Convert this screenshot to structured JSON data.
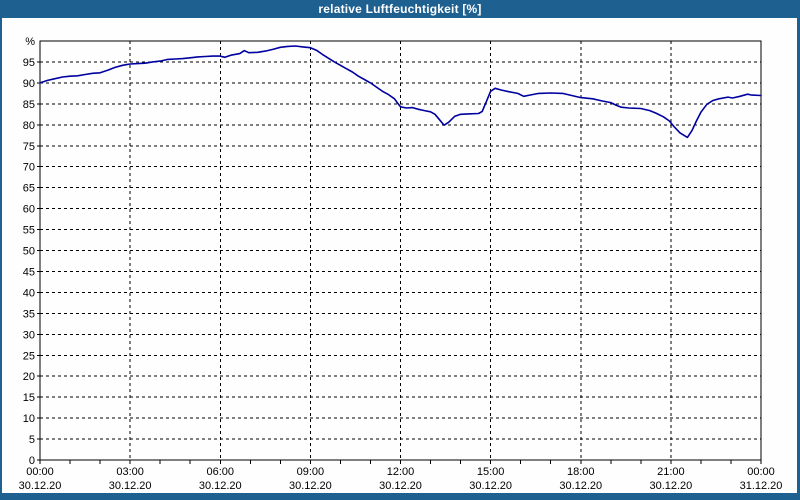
{
  "window": {
    "title": "relative Luftfeuchtigkeit [%]",
    "titlebar_color": "#1E6090",
    "frame_color": "#1E6090",
    "background_color": "#FDFEFD"
  },
  "chart_data": {
    "type": "line",
    "title": "relative Luftfeuchtigkeit [%]",
    "ylabel": "%",
    "y_unit_label": "%",
    "ylim": [
      0,
      100
    ],
    "y_tick_step": 5,
    "y_tick_values": [
      0,
      5,
      10,
      15,
      20,
      25,
      30,
      35,
      40,
      45,
      50,
      55,
      60,
      65,
      70,
      75,
      80,
      85,
      90,
      95
    ],
    "x_range_hours": [
      0,
      24
    ],
    "x_minor_tick_hours": 1,
    "x_major_ticks": [
      {
        "hour": 0,
        "time": "00:00",
        "date": "30.12.20"
      },
      {
        "hour": 3,
        "time": "03:00",
        "date": "30.12.20"
      },
      {
        "hour": 6,
        "time": "06:00",
        "date": "30.12.20"
      },
      {
        "hour": 9,
        "time": "09:00",
        "date": "30.12.20"
      },
      {
        "hour": 12,
        "time": "12:00",
        "date": "30.12.20"
      },
      {
        "hour": 15,
        "time": "15:00",
        "date": "30.12.20"
      },
      {
        "hour": 18,
        "time": "18:00",
        "date": "30.12.20"
      },
      {
        "hour": 21,
        "time": "21:00",
        "date": "30.12.20"
      },
      {
        "hour": 24,
        "time": "00:00",
        "date": "31.12.20"
      }
    ],
    "grid": "dashed",
    "legend": "none",
    "line_color": "#0000A0",
    "series": [
      {
        "name": "relative Luftfeuchtigkeit",
        "points": [
          [
            0.0,
            90.0
          ],
          [
            0.25,
            90.6
          ],
          [
            0.5,
            91.0
          ],
          [
            0.75,
            91.4
          ],
          [
            1.0,
            91.6
          ],
          [
            1.25,
            91.7
          ],
          [
            1.5,
            92.0
          ],
          [
            1.75,
            92.3
          ],
          [
            2.0,
            92.4
          ],
          [
            2.25,
            93.0
          ],
          [
            2.5,
            93.7
          ],
          [
            2.75,
            94.2
          ],
          [
            3.0,
            94.5
          ],
          [
            3.25,
            94.6
          ],
          [
            3.5,
            94.7
          ],
          [
            3.75,
            95.0
          ],
          [
            4.0,
            95.2
          ],
          [
            4.25,
            95.6
          ],
          [
            4.5,
            95.7
          ],
          [
            4.75,
            95.8
          ],
          [
            5.0,
            96.0
          ],
          [
            5.25,
            96.2
          ],
          [
            5.5,
            96.3
          ],
          [
            5.75,
            96.4
          ],
          [
            6.0,
            96.4
          ],
          [
            6.15,
            96.1
          ],
          [
            6.35,
            96.6
          ],
          [
            6.65,
            97.0
          ],
          [
            6.8,
            97.7
          ],
          [
            6.95,
            97.2
          ],
          [
            7.25,
            97.3
          ],
          [
            7.5,
            97.6
          ],
          [
            7.75,
            98.0
          ],
          [
            8.0,
            98.5
          ],
          [
            8.25,
            98.7
          ],
          [
            8.5,
            98.8
          ],
          [
            8.75,
            98.6
          ],
          [
            9.0,
            98.4
          ],
          [
            9.2,
            97.8
          ],
          [
            9.4,
            96.8
          ],
          [
            9.6,
            95.9
          ],
          [
            9.8,
            95.0
          ],
          [
            10.0,
            94.2
          ],
          [
            10.2,
            93.4
          ],
          [
            10.4,
            92.6
          ],
          [
            10.6,
            91.6
          ],
          [
            10.8,
            90.8
          ],
          [
            11.0,
            90.0
          ],
          [
            11.2,
            89.0
          ],
          [
            11.4,
            88.0
          ],
          [
            11.6,
            87.2
          ],
          [
            11.8,
            86.2
          ],
          [
            11.9,
            85.2
          ],
          [
            12.0,
            84.3
          ],
          [
            12.2,
            84.0
          ],
          [
            12.4,
            84.1
          ],
          [
            12.6,
            83.7
          ],
          [
            12.8,
            83.4
          ],
          [
            13.0,
            83.1
          ],
          [
            13.15,
            82.5
          ],
          [
            13.3,
            81.2
          ],
          [
            13.45,
            79.9
          ],
          [
            13.6,
            80.6
          ],
          [
            13.8,
            82.0
          ],
          [
            14.0,
            82.5
          ],
          [
            14.25,
            82.6
          ],
          [
            14.6,
            82.7
          ],
          [
            14.72,
            83.2
          ],
          [
            14.85,
            85.4
          ],
          [
            15.0,
            88.0
          ],
          [
            15.15,
            88.7
          ],
          [
            15.35,
            88.3
          ],
          [
            15.6,
            87.9
          ],
          [
            15.9,
            87.5
          ],
          [
            16.1,
            86.8
          ],
          [
            16.3,
            87.1
          ],
          [
            16.6,
            87.5
          ],
          [
            17.0,
            87.6
          ],
          [
            17.4,
            87.5
          ],
          [
            17.7,
            87.0
          ],
          [
            18.0,
            86.5
          ],
          [
            18.4,
            86.2
          ],
          [
            18.7,
            85.7
          ],
          [
            19.0,
            85.3
          ],
          [
            19.2,
            84.6
          ],
          [
            19.35,
            84.2
          ],
          [
            19.6,
            84.0
          ],
          [
            20.0,
            83.9
          ],
          [
            20.3,
            83.4
          ],
          [
            20.5,
            82.8
          ],
          [
            20.75,
            81.9
          ],
          [
            20.95,
            80.9
          ],
          [
            21.1,
            79.6
          ],
          [
            21.3,
            78.1
          ],
          [
            21.55,
            77.0
          ],
          [
            21.7,
            78.6
          ],
          [
            21.85,
            80.9
          ],
          [
            22.0,
            83.0
          ],
          [
            22.2,
            84.9
          ],
          [
            22.4,
            85.8
          ],
          [
            22.6,
            86.2
          ],
          [
            22.9,
            86.6
          ],
          [
            23.05,
            86.4
          ],
          [
            23.3,
            86.8
          ],
          [
            23.55,
            87.3
          ],
          [
            23.7,
            87.1
          ],
          [
            24.0,
            87.0
          ]
        ]
      }
    ]
  }
}
